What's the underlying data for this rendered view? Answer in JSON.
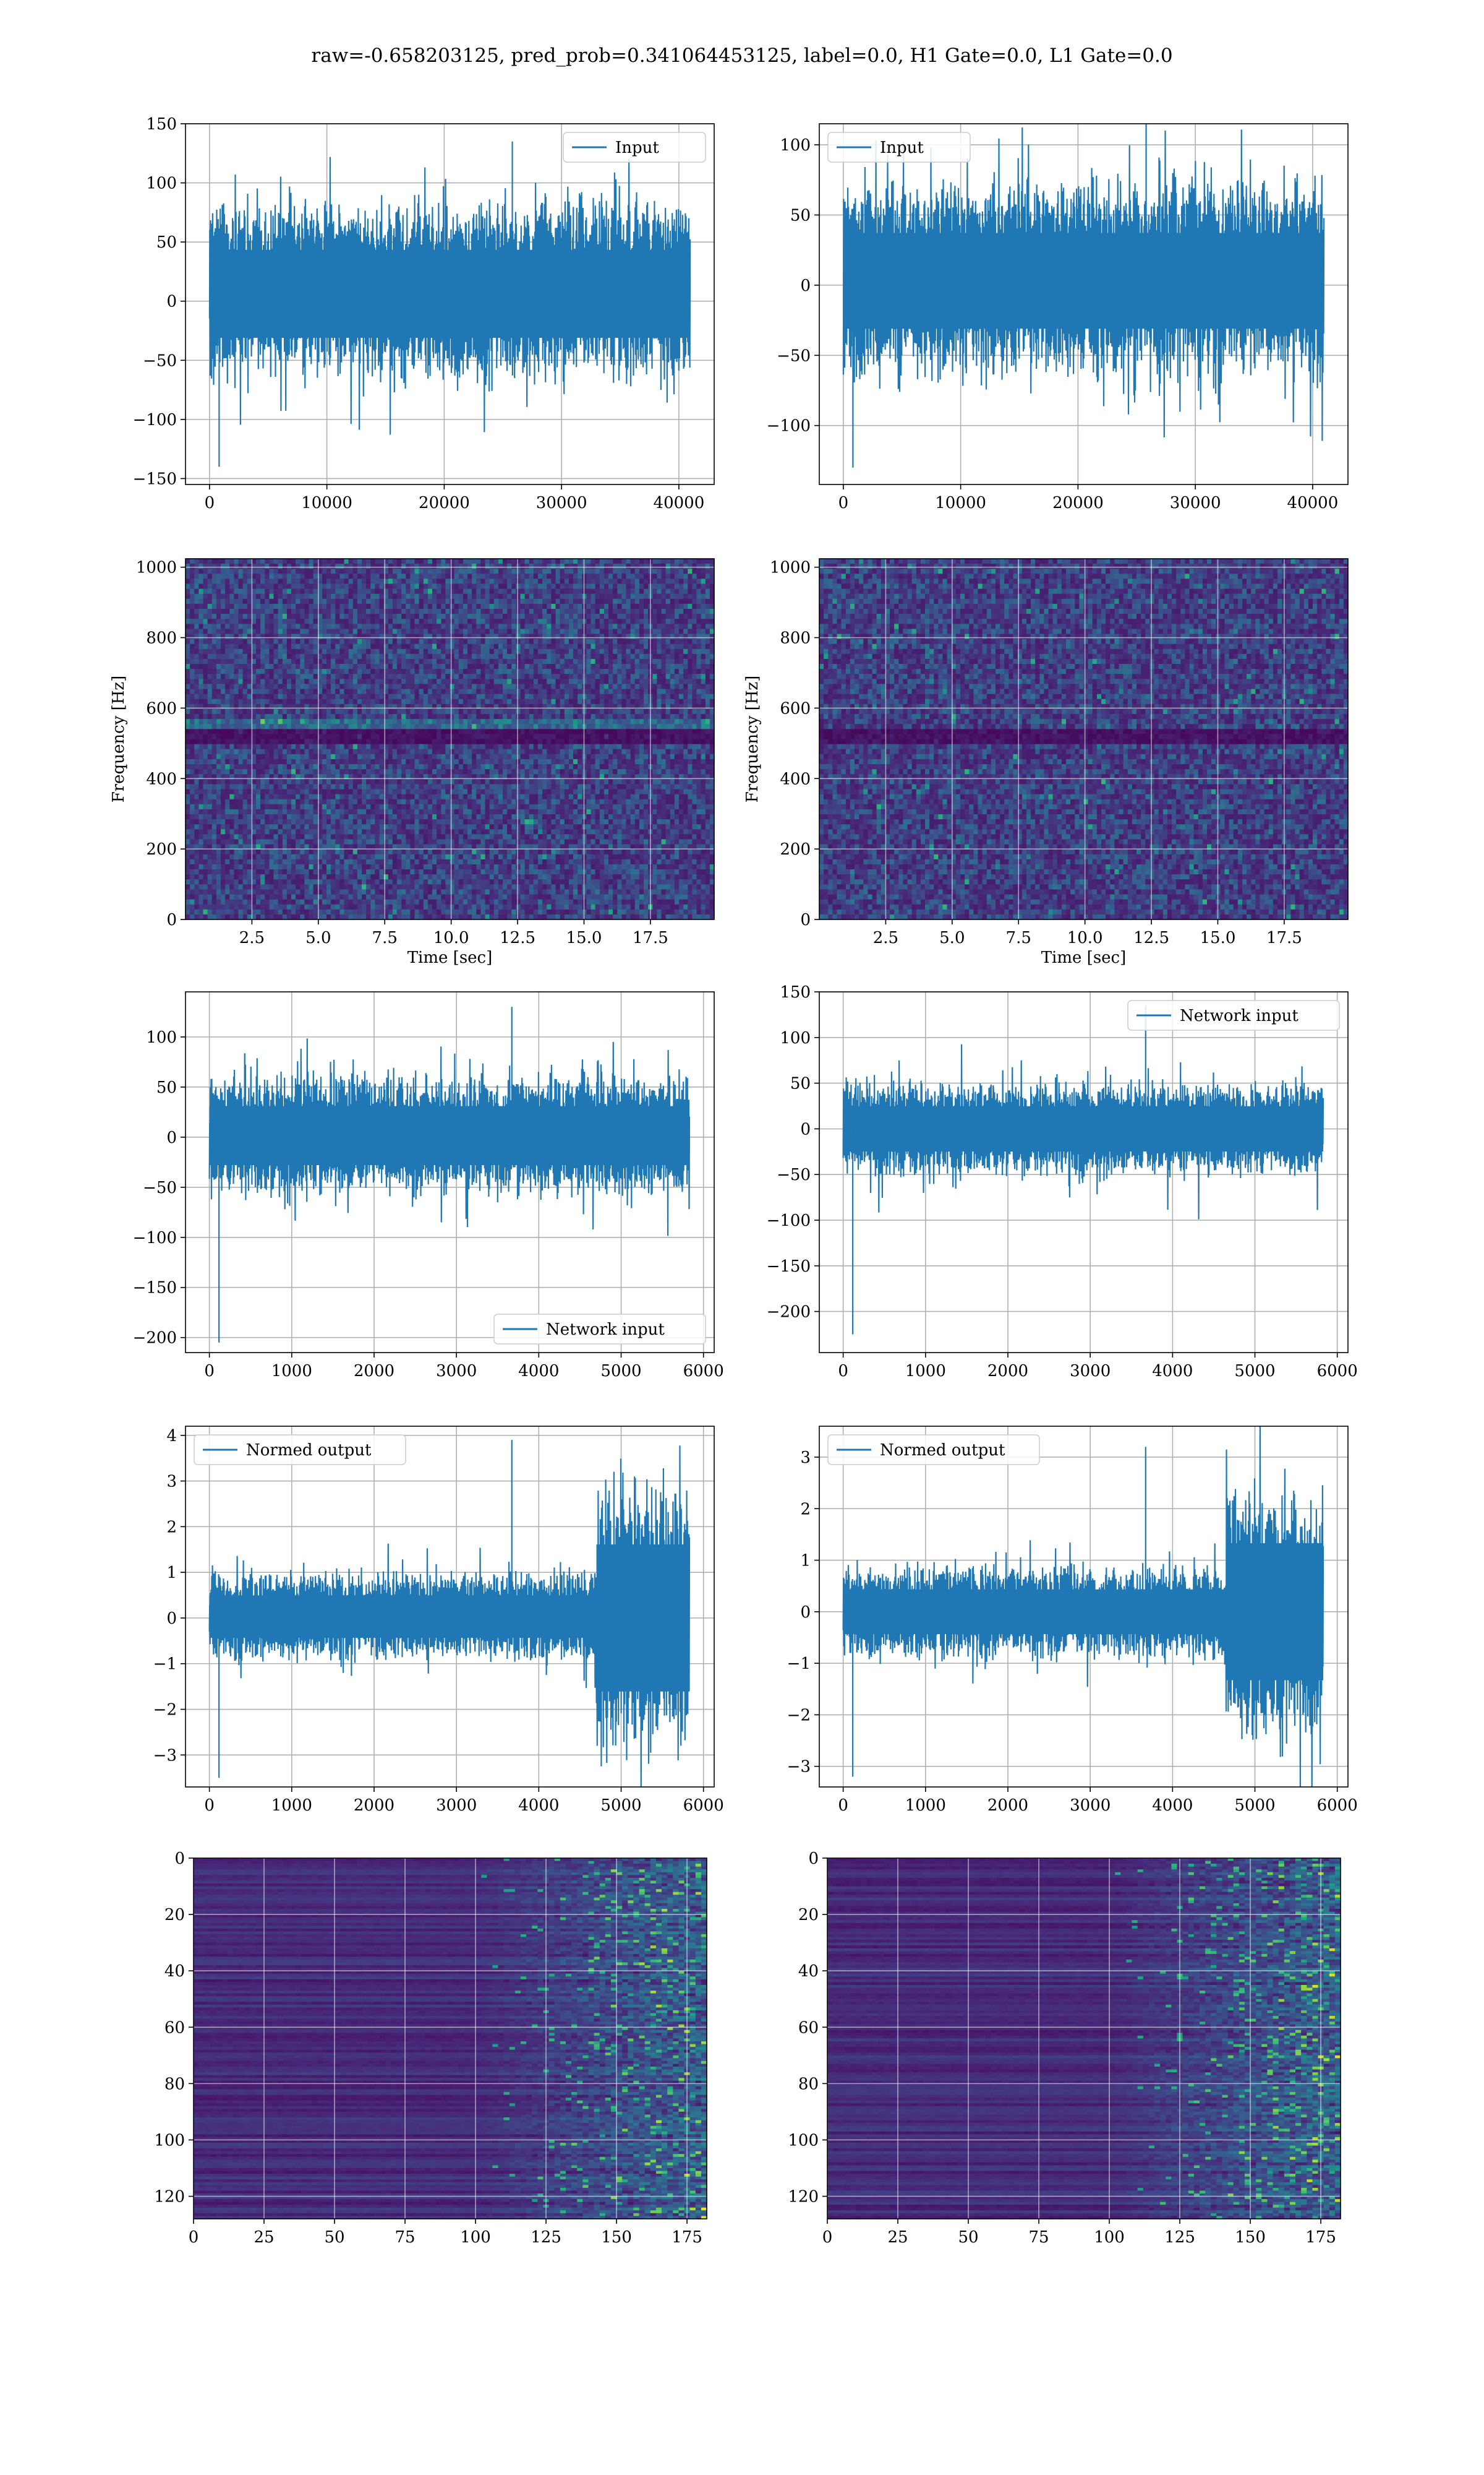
{
  "figure": {
    "title": "raw=-0.658203125, pred_prob=0.341064453125, label=0.0, H1 Gate=0.0, L1 Gate=0.0"
  },
  "colors": {
    "series": "#1f77b4",
    "grid": "#b0b0b0",
    "viridis_dark": "#440154",
    "viridis_mid": "#21918c",
    "viridis_bright": "#fde725"
  },
  "chart_data": [
    {
      "id": "p1",
      "type": "line",
      "series": [
        {
          "name": "Input",
          "x_range": [
            0,
            40960
          ],
          "y_typical_range": [
            -50,
            70
          ],
          "y_peaks": [
            135,
            -140
          ]
        }
      ],
      "xlim": [
        -2048,
        43008
      ],
      "ylim": [
        -155,
        150
      ],
      "xticks": [
        0,
        10000,
        20000,
        30000,
        40000
      ],
      "xtick_labels": [
        "0",
        "10000",
        "20000",
        "30000",
        "40000"
      ],
      "yticks": [
        -150,
        -100,
        -50,
        0,
        50,
        100,
        150
      ],
      "ytick_labels": [
        "−150",
        "−100",
        "−50",
        "0",
        "50",
        "100",
        "150"
      ],
      "legend": "upper right",
      "grid": true,
      "xlabel": "",
      "ylabel": ""
    },
    {
      "id": "p2",
      "type": "line",
      "series": [
        {
          "name": "Input",
          "x_range": [
            0,
            40960
          ],
          "y_typical_range": [
            -50,
            60
          ],
          "y_peaks": [
            125,
            -130
          ]
        }
      ],
      "xlim": [
        -2048,
        43008
      ],
      "ylim": [
        -142,
        115
      ],
      "xticks": [
        0,
        10000,
        20000,
        30000,
        40000
      ],
      "xtick_labels": [
        "0",
        "10000",
        "20000",
        "30000",
        "40000"
      ],
      "yticks": [
        -100,
        -50,
        0,
        50,
        100
      ],
      "ytick_labels": [
        "−100",
        "−50",
        "0",
        "50",
        "100"
      ],
      "legend": "upper left",
      "grid": true,
      "xlabel": "",
      "ylabel": ""
    },
    {
      "id": "p3",
      "type": "heatmap",
      "xlim": [
        0,
        19.9
      ],
      "ylim": [
        0,
        1024
      ],
      "xticks": [
        2.5,
        5.0,
        7.5,
        10.0,
        12.5,
        15.0,
        17.5
      ],
      "xtick_labels": [
        "2.5",
        "5.0",
        "7.5",
        "10.0",
        "12.5",
        "15.0",
        "17.5"
      ],
      "yticks": [
        0,
        200,
        400,
        600,
        800,
        1000
      ],
      "ytick_labels": [
        "0",
        "200",
        "400",
        "600",
        "800",
        "1000"
      ],
      "xlabel": "Time [sec]",
      "ylabel": "Frequency [Hz]",
      "dark_band_hz": [
        500,
        540
      ],
      "bright_band_hz": [
        545,
        575
      ],
      "grid": true
    },
    {
      "id": "p4",
      "type": "heatmap",
      "xlim": [
        0,
        19.9
      ],
      "ylim": [
        0,
        1024
      ],
      "xticks": [
        2.5,
        5.0,
        7.5,
        10.0,
        12.5,
        15.0,
        17.5
      ],
      "xtick_labels": [
        "2.5",
        "5.0",
        "7.5",
        "10.0",
        "12.5",
        "15.0",
        "17.5"
      ],
      "yticks": [
        0,
        200,
        400,
        600,
        800,
        1000
      ],
      "ytick_labels": [
        "0",
        "200",
        "400",
        "600",
        "800",
        "1000"
      ],
      "xlabel": "Time [sec]",
      "ylabel": "Frequency [Hz]",
      "dark_band_hz": [
        500,
        540
      ],
      "bright_band_hz": [],
      "grid": true
    },
    {
      "id": "p5",
      "type": "line",
      "series": [
        {
          "name": "Network input",
          "x_range": [
            0,
            5830
          ],
          "y_typical_range": [
            -45,
            50
          ],
          "y_peaks": [
            130,
            -205
          ]
        }
      ],
      "xlim": [
        -290,
        6130
      ],
      "ylim": [
        -215,
        145
      ],
      "xticks": [
        0,
        1000,
        2000,
        3000,
        4000,
        5000,
        6000
      ],
      "xtick_labels": [
        "0",
        "1000",
        "2000",
        "3000",
        "4000",
        "5000",
        "6000"
      ],
      "yticks": [
        -200,
        -150,
        -100,
        -50,
        0,
        50,
        100
      ],
      "ytick_labels": [
        "−200",
        "−150",
        "−100",
        "−50",
        "0",
        "50",
        "100"
      ],
      "legend": "lower right",
      "grid": true,
      "xlabel": "",
      "ylabel": ""
    },
    {
      "id": "p6",
      "type": "line",
      "series": [
        {
          "name": "Network input",
          "x_range": [
            0,
            5830
          ],
          "y_typical_range": [
            -40,
            40
          ],
          "y_peaks": [
            135,
            -225
          ]
        }
      ],
      "xlim": [
        -290,
        6130
      ],
      "ylim": [
        -245,
        150
      ],
      "xticks": [
        0,
        1000,
        2000,
        3000,
        4000,
        5000,
        6000
      ],
      "xtick_labels": [
        "0",
        "1000",
        "2000",
        "3000",
        "4000",
        "5000",
        "6000"
      ],
      "yticks": [
        -200,
        -150,
        -100,
        -50,
        0,
        50,
        100,
        150
      ],
      "ytick_labels": [
        "−200",
        "−150",
        "−100",
        "−50",
        "0",
        "50",
        "100",
        "150"
      ],
      "legend": "upper right",
      "grid": true,
      "xlabel": "",
      "ylabel": ""
    },
    {
      "id": "p7",
      "type": "line",
      "series": [
        {
          "name": "Normed output",
          "x_range": [
            0,
            5830
          ],
          "y_typical_range": [
            -0.7,
            0.8
          ],
          "burst_x": [
            4700,
            5830
          ],
          "burst_amplitude": 2.3,
          "y_peaks": [
            3.9,
            -3.5
          ]
        }
      ],
      "xlim": [
        -290,
        6130
      ],
      "ylim": [
        -3.7,
        4.2
      ],
      "xticks": [
        0,
        1000,
        2000,
        3000,
        4000,
        5000,
        6000
      ],
      "xtick_labels": [
        "0",
        "1000",
        "2000",
        "3000",
        "4000",
        "5000",
        "6000"
      ],
      "yticks": [
        -3,
        -2,
        -1,
        0,
        1,
        2,
        3,
        4
      ],
      "ytick_labels": [
        "−3",
        "−2",
        "−1",
        "0",
        "1",
        "2",
        "3",
        "4"
      ],
      "legend": "upper left",
      "grid": true,
      "xlabel": "",
      "ylabel": ""
    },
    {
      "id": "p8",
      "type": "line",
      "series": [
        {
          "name": "Normed output",
          "x_range": [
            0,
            5830
          ],
          "y_typical_range": [
            -0.7,
            0.7
          ],
          "burst_x": [
            4650,
            5830
          ],
          "burst_amplitude": 1.9,
          "y_peaks": [
            3.2,
            -3.2
          ]
        }
      ],
      "xlim": [
        -290,
        6130
      ],
      "ylim": [
        -3.4,
        3.6
      ],
      "xticks": [
        0,
        1000,
        2000,
        3000,
        4000,
        5000,
        6000
      ],
      "xtick_labels": [
        "0",
        "1000",
        "2000",
        "3000",
        "4000",
        "5000",
        "6000"
      ],
      "yticks": [
        -3,
        -2,
        -1,
        0,
        1,
        2,
        3
      ],
      "ytick_labels": [
        "−3",
        "−2",
        "−1",
        "0",
        "1",
        "2",
        "3"
      ],
      "legend": "upper left",
      "grid": true,
      "xlabel": "",
      "ylabel": ""
    },
    {
      "id": "p9",
      "type": "heatmap",
      "xlim": [
        0,
        182
      ],
      "ylim": [
        128,
        0
      ],
      "xticks": [
        0,
        25,
        50,
        75,
        100,
        125,
        150,
        175
      ],
      "xtick_labels": [
        "0",
        "25",
        "50",
        "75",
        "100",
        "125",
        "150",
        "175"
      ],
      "yticks": [
        0,
        20,
        40,
        60,
        80,
        100,
        120
      ],
      "ytick_labels": [
        "0",
        "20",
        "40",
        "60",
        "80",
        "100",
        "120"
      ],
      "activity_onset_x": 100,
      "grid": true,
      "xlabel": "",
      "ylabel": ""
    },
    {
      "id": "p10",
      "type": "heatmap",
      "xlim": [
        0,
        182
      ],
      "ylim": [
        128,
        0
      ],
      "xticks": [
        0,
        25,
        50,
        75,
        100,
        125,
        150,
        175
      ],
      "xtick_labels": [
        "0",
        "25",
        "50",
        "75",
        "100",
        "125",
        "150",
        "175"
      ],
      "yticks": [
        0,
        20,
        40,
        60,
        80,
        100,
        120
      ],
      "ytick_labels": [
        "0",
        "20",
        "40",
        "60",
        "80",
        "100",
        "120"
      ],
      "activity_onset_x": 100,
      "grid": true,
      "xlabel": "",
      "ylabel": ""
    }
  ]
}
